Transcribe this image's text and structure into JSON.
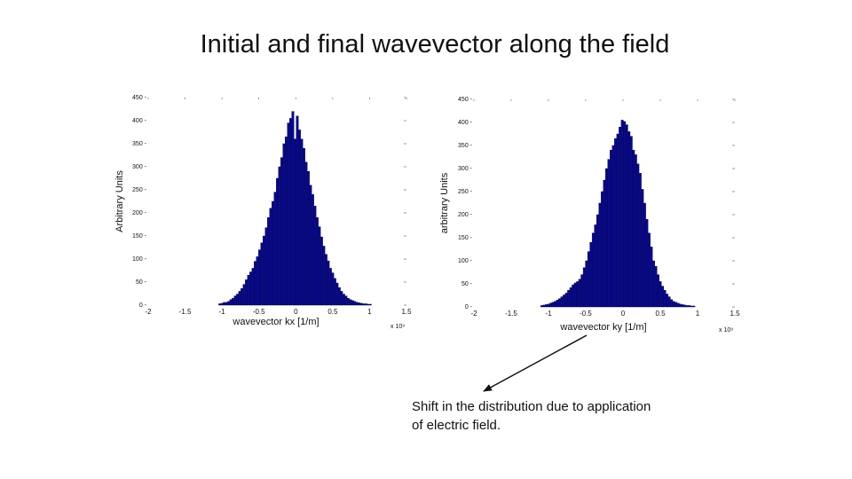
{
  "slide": {
    "title": "Initial and final wavevector along the field",
    "annotation_lines": [
      "Shift in the distribution due to application",
      "of electric field."
    ]
  },
  "colors": {
    "bar_fill": "#0a0a8c",
    "bar_edge": "#000040",
    "text": "#111111"
  },
  "chart_data": [
    {
      "type": "bar",
      "title": "",
      "xlabel": "wavevector kx [1/m]",
      "ylabel": "Arbitrary Units",
      "x_multiplier": "x 10⁹",
      "xlim": [
        -2,
        1.5
      ],
      "ylim": [
        0,
        450
      ],
      "xticks": [
        -2,
        -1.5,
        -1,
        -0.5,
        0,
        0.5,
        1,
        1.5
      ],
      "xtick_labels": [
        "-2",
        "-1.5",
        "-1",
        "-0.5",
        "0",
        "0.5",
        "1",
        "1.5"
      ],
      "yticks": [
        0,
        50,
        100,
        150,
        200,
        250,
        300,
        350,
        400,
        450
      ],
      "ytick_labels": [
        "0",
        "50",
        "100",
        "150",
        "200",
        "250",
        "300",
        "350",
        "400",
        "450"
      ],
      "bin_width": 0.03,
      "bin_centers": [
        -1.03,
        -1.0,
        -0.97,
        -0.94,
        -0.91,
        -0.88,
        -0.85,
        -0.82,
        -0.79,
        -0.76,
        -0.73,
        -0.7,
        -0.67,
        -0.64,
        -0.61,
        -0.58,
        -0.55,
        -0.52,
        -0.49,
        -0.46,
        -0.43,
        -0.4,
        -0.37,
        -0.34,
        -0.31,
        -0.28,
        -0.25,
        -0.22,
        -0.19,
        -0.16,
        -0.13,
        -0.1,
        -0.07,
        -0.04,
        -0.01,
        0.02,
        0.05,
        0.08,
        0.11,
        0.14,
        0.17,
        0.2,
        0.23,
        0.26,
        0.29,
        0.32,
        0.35,
        0.38,
        0.41,
        0.44,
        0.47,
        0.5,
        0.53,
        0.56,
        0.59,
        0.62,
        0.65,
        0.68,
        0.71,
        0.74,
        0.77,
        0.8,
        0.83,
        0.86,
        0.89,
        0.92,
        0.95,
        0.98,
        1.01
      ],
      "values": [
        3,
        4,
        6,
        6,
        8,
        12,
        15,
        20,
        24,
        30,
        36,
        45,
        55,
        65,
        72,
        80,
        95,
        105,
        120,
        135,
        150,
        168,
        190,
        210,
        225,
        245,
        275,
        300,
        320,
        350,
        365,
        395,
        405,
        420,
        360,
        410,
        380,
        360,
        340,
        310,
        290,
        260,
        240,
        215,
        190,
        170,
        148,
        128,
        110,
        96,
        80,
        70,
        58,
        48,
        38,
        30,
        24,
        20,
        15,
        12,
        10,
        8,
        6,
        5,
        4,
        3,
        3,
        2,
        2
      ]
    },
    {
      "type": "bar",
      "title": "",
      "xlabel": "wavevector ky [1/m]",
      "ylabel": "arbitrary Units",
      "x_multiplier": "x 10⁹",
      "xlim": [
        -2,
        1.5
      ],
      "ylim": [
        0,
        450
      ],
      "xticks": [
        -2,
        -1.5,
        -1,
        -0.5,
        0,
        0.5,
        1,
        1.5
      ],
      "xtick_labels": [
        "-2",
        "-1.5",
        "-1",
        "-0.5",
        "0",
        "0.5",
        "1",
        "1.5"
      ],
      "yticks": [
        0,
        50,
        100,
        150,
        200,
        250,
        300,
        350,
        400,
        450
      ],
      "ytick_labels": [
        "0",
        "50",
        "100",
        "150",
        "200",
        "250",
        "300",
        "350",
        "400",
        "450"
      ],
      "bin_width": 0.03,
      "bin_centers": [
        -1.09,
        -1.06,
        -1.03,
        -1.0,
        -0.97,
        -0.94,
        -0.91,
        -0.88,
        -0.85,
        -0.82,
        -0.79,
        -0.76,
        -0.73,
        -0.7,
        -0.67,
        -0.64,
        -0.61,
        -0.58,
        -0.55,
        -0.52,
        -0.49,
        -0.46,
        -0.43,
        -0.4,
        -0.37,
        -0.34,
        -0.31,
        -0.28,
        -0.25,
        -0.22,
        -0.19,
        -0.16,
        -0.13,
        -0.1,
        -0.07,
        -0.04,
        -0.01,
        0.02,
        0.05,
        0.08,
        0.11,
        0.14,
        0.17,
        0.2,
        0.23,
        0.26,
        0.29,
        0.32,
        0.35,
        0.38,
        0.41,
        0.44,
        0.47,
        0.5,
        0.53,
        0.56,
        0.59,
        0.62,
        0.65,
        0.68,
        0.71,
        0.74,
        0.77,
        0.8,
        0.83,
        0.86,
        0.89,
        0.92,
        0.95
      ],
      "values": [
        3,
        4,
        5,
        6,
        8,
        10,
        12,
        15,
        18,
        22,
        26,
        30,
        36,
        42,
        48,
        52,
        55,
        60,
        70,
        85,
        100,
        120,
        140,
        160,
        178,
        200,
        225,
        250,
        275,
        300,
        320,
        340,
        350,
        365,
        375,
        390,
        405,
        402,
        395,
        380,
        370,
        340,
        330,
        310,
        290,
        255,
        225,
        190,
        160,
        130,
        100,
        88,
        70,
        55,
        45,
        36,
        28,
        22,
        16,
        12,
        10,
        8,
        6,
        5,
        4,
        3,
        3,
        2,
        2
      ]
    }
  ]
}
